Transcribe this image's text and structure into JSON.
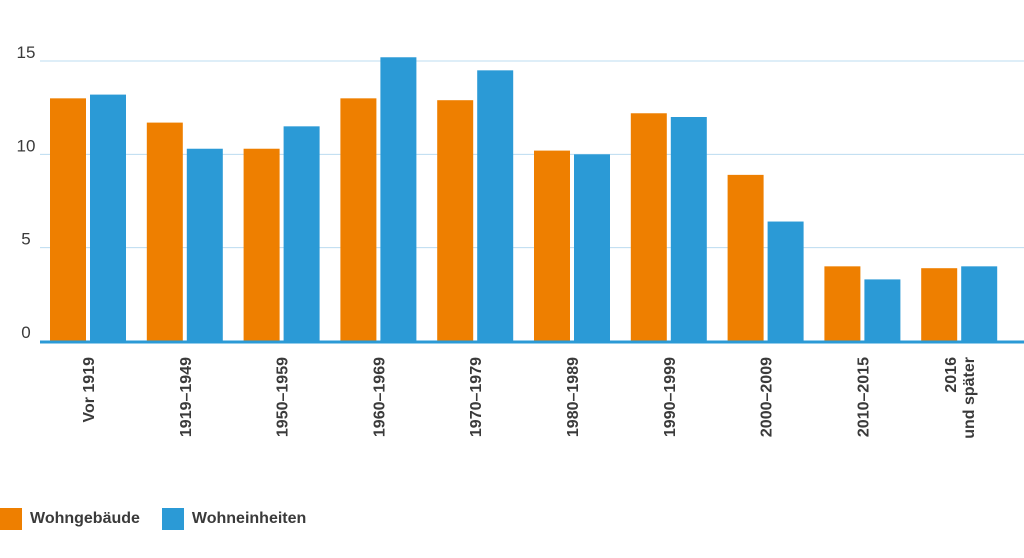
{
  "chart_data": {
    "type": "bar",
    "categories": [
      "Vor 1919",
      "1919–1949",
      "1950–1959",
      "1960–1969",
      "1970–1979",
      "1980–1989",
      "1990–1999",
      "2000–2009",
      "2010–2015",
      "2016\nund später"
    ],
    "series": [
      {
        "name": "Wohngebäude",
        "color": "#ee7f00",
        "values": [
          13.0,
          11.7,
          10.3,
          13.0,
          12.9,
          10.2,
          12.2,
          8.9,
          4.0,
          3.9
        ]
      },
      {
        "name": "Wohneinheiten",
        "color": "#2b9ad6",
        "values": [
          13.2,
          10.3,
          11.5,
          15.2,
          14.5,
          10.0,
          12.0,
          6.4,
          3.3,
          4.0
        ]
      }
    ],
    "yticks": [
      0,
      5,
      10,
      15
    ],
    "ylim": [
      0,
      15
    ],
    "grid": true,
    "legend": "bottom-left",
    "title": "",
    "xlabel": "",
    "ylabel": ""
  }
}
